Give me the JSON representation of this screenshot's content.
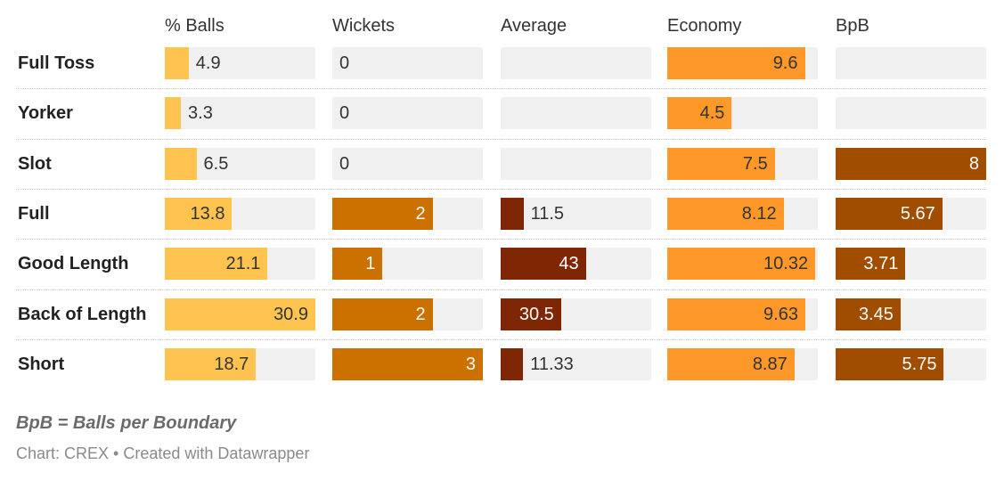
{
  "chart_data": {
    "type": "table",
    "columns": [
      {
        "name": "% Balls",
        "max": 30.9,
        "color": "#fec44f"
      },
      {
        "name": "Wickets",
        "max": 3,
        "color": "#cc7000"
      },
      {
        "name": "Average",
        "max": 76,
        "color": "#7f2704"
      },
      {
        "name": "Economy",
        "max": 10.5,
        "color": "#fe9929"
      },
      {
        "name": "BpB",
        "max": 8,
        "color": "#a04d00"
      }
    ],
    "rows": [
      {
        "label": "Full Toss",
        "values": [
          "4.9",
          "0",
          "",
          "9.6",
          ""
        ]
      },
      {
        "label": "Yorker",
        "values": [
          "3.3",
          "0",
          "",
          "4.5",
          ""
        ]
      },
      {
        "label": "Slot",
        "values": [
          "6.5",
          "0",
          "",
          "7.5",
          "8"
        ]
      },
      {
        "label": "Full",
        "values": [
          "13.8",
          "2",
          "11.5",
          "8.12",
          "5.67"
        ]
      },
      {
        "label": "Good Length",
        "values": [
          "21.1",
          "1",
          "43",
          "10.32",
          "3.71"
        ]
      },
      {
        "label": "Back of Length",
        "values": [
          "30.9",
          "2",
          "30.5",
          "9.63",
          "3.45"
        ]
      },
      {
        "label": "Short",
        "values": [
          "18.7",
          "3",
          "11.33",
          "8.87",
          "5.75"
        ]
      }
    ]
  },
  "note": "BpB = Balls per Boundary",
  "source": "Chart: CREX • Created with Datawrapper"
}
